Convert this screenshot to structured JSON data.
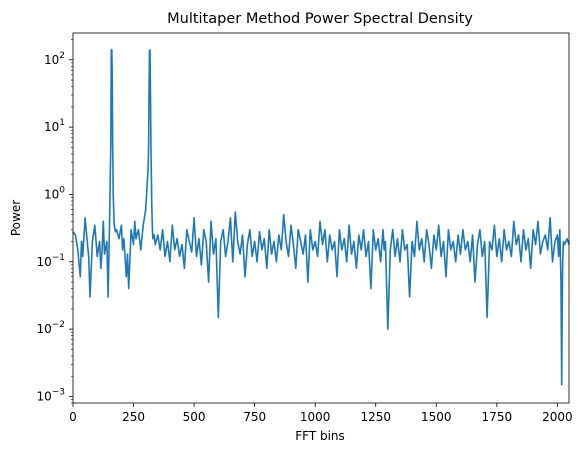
{
  "chart_data": {
    "type": "line",
    "title": "Multitaper Method Power Spectral Density",
    "xlabel": "FFT bins",
    "ylabel": "Power",
    "xlim": [
      0,
      2048
    ],
    "ylim": [
      0.0008,
      250
    ],
    "yscale": "log",
    "grid": false,
    "line_color": "#1f77b4",
    "x_ticks": [
      {
        "value": 0,
        "label": "0"
      },
      {
        "value": 250,
        "label": "250"
      },
      {
        "value": 500,
        "label": "500"
      },
      {
        "value": 750,
        "label": "750"
      },
      {
        "value": 1000,
        "label": "1000"
      },
      {
        "value": 1250,
        "label": "1250"
      },
      {
        "value": 1500,
        "label": "1500"
      },
      {
        "value": 1750,
        "label": "1750"
      },
      {
        "value": 2000,
        "label": "2000"
      }
    ],
    "y_ticks": [
      {
        "value": 0.001,
        "base": "10",
        "exp": "−3"
      },
      {
        "value": 0.01,
        "base": "10",
        "exp": "−2"
      },
      {
        "value": 0.1,
        "base": "10",
        "exp": "−1"
      },
      {
        "value": 1,
        "base": "10",
        "exp": "0"
      },
      {
        "value": 10,
        "base": "10",
        "exp": "1"
      },
      {
        "value": 100,
        "base": "10",
        "exp": "2"
      }
    ],
    "series": [
      {
        "x": [
          0,
          10,
          20,
          30,
          35,
          40,
          50,
          60,
          65,
          70,
          80,
          90,
          100,
          110,
          115,
          120,
          125,
          130,
          140,
          145,
          150,
          152,
          154,
          156,
          157,
          158,
          159,
          160,
          162,
          164,
          165,
          166,
          168,
          170,
          175,
          180,
          190,
          200,
          205,
          210,
          220,
          225,
          230,
          240,
          250,
          255,
          260,
          270,
          280,
          290,
          300,
          305,
          310,
          312,
          314,
          316,
          317,
          318,
          320,
          322,
          324,
          325,
          326,
          328,
          330,
          335,
          340,
          350,
          360,
          370,
          380,
          390,
          400,
          410,
          420,
          430,
          440,
          450,
          460,
          470,
          480,
          490,
          500,
          510,
          520,
          530,
          540,
          550,
          560,
          570,
          580,
          590,
          600,
          610,
          620,
          630,
          640,
          650,
          660,
          670,
          680,
          690,
          700,
          710,
          720,
          730,
          740,
          750,
          760,
          770,
          780,
          790,
          800,
          810,
          820,
          830,
          840,
          850,
          860,
          870,
          880,
          890,
          900,
          910,
          920,
          930,
          940,
          950,
          960,
          970,
          980,
          990,
          1000,
          1010,
          1020,
          1030,
          1040,
          1050,
          1060,
          1070,
          1080,
          1090,
          1100,
          1110,
          1120,
          1130,
          1140,
          1150,
          1160,
          1170,
          1180,
          1190,
          1200,
          1210,
          1220,
          1230,
          1240,
          1250,
          1260,
          1270,
          1280,
          1285,
          1290,
          1300,
          1310,
          1320,
          1330,
          1340,
          1350,
          1360,
          1370,
          1380,
          1390,
          1400,
          1410,
          1420,
          1430,
          1440,
          1450,
          1460,
          1470,
          1480,
          1490,
          1500,
          1510,
          1520,
          1530,
          1540,
          1550,
          1560,
          1570,
          1580,
          1590,
          1600,
          1610,
          1620,
          1630,
          1640,
          1650,
          1660,
          1670,
          1680,
          1690,
          1700,
          1710,
          1720,
          1730,
          1740,
          1750,
          1760,
          1770,
          1780,
          1790,
          1800,
          1810,
          1820,
          1830,
          1840,
          1850,
          1860,
          1870,
          1880,
          1890,
          1900,
          1910,
          1920,
          1930,
          1940,
          1950,
          1960,
          1970,
          1980,
          1990,
          2000,
          2005,
          2010,
          2015,
          2018,
          2020,
          2022,
          2025,
          2030,
          2040,
          2048
        ],
        "values": [
          0.28,
          0.25,
          0.15,
          0.06,
          0.2,
          0.12,
          0.45,
          0.18,
          0.12,
          0.03,
          0.2,
          0.35,
          0.12,
          0.2,
          0.08,
          0.15,
          0.4,
          0.13,
          0.2,
          0.03,
          0.25,
          0.6,
          2.0,
          5.0,
          20,
          140,
          142,
          140,
          60,
          5,
          2.2,
          1.0,
          0.6,
          0.35,
          0.28,
          0.3,
          0.22,
          0.35,
          0.15,
          0.22,
          0.06,
          0.13,
          0.04,
          0.3,
          0.18,
          0.4,
          0.22,
          0.3,
          0.15,
          0.35,
          0.6,
          1.2,
          2.5,
          5,
          30,
          138,
          140,
          138,
          30,
          4,
          1.5,
          0.8,
          0.5,
          0.3,
          0.22,
          0.25,
          0.18,
          0.25,
          0.15,
          0.3,
          0.12,
          0.2,
          0.1,
          0.35,
          0.15,
          0.22,
          0.12,
          0.18,
          0.08,
          0.3,
          0.2,
          0.14,
          0.45,
          0.12,
          0.22,
          0.09,
          0.3,
          0.2,
          0.05,
          0.4,
          0.13,
          0.22,
          0.015,
          0.2,
          0.3,
          0.12,
          0.2,
          0.45,
          0.1,
          0.55,
          0.2,
          0.13,
          0.25,
          0.06,
          0.18,
          0.3,
          0.12,
          0.2,
          0.1,
          0.28,
          0.15,
          0.22,
          0.08,
          0.3,
          0.13,
          0.2,
          0.1,
          0.25,
          0.15,
          0.5,
          0.2,
          0.12,
          0.35,
          0.18,
          0.08,
          0.3,
          0.2,
          0.13,
          0.25,
          0.05,
          0.3,
          0.15,
          0.2,
          0.12,
          0.4,
          0.18,
          0.3,
          0.1,
          0.25,
          0.15,
          0.2,
          0.06,
          0.3,
          0.15,
          0.22,
          0.1,
          0.35,
          0.13,
          0.2,
          0.08,
          0.25,
          0.15,
          0.3,
          0.12,
          0.2,
          0.04,
          0.3,
          0.15,
          0.22,
          0.1,
          0.3,
          0.15,
          0.2,
          0.01,
          0.15,
          0.3,
          0.12,
          0.22,
          0.1,
          0.3,
          0.15,
          0.18,
          0.03,
          0.2,
          0.12,
          0.4,
          0.15,
          0.22,
          0.1,
          0.3,
          0.18,
          0.08,
          0.25,
          0.15,
          0.35,
          0.12,
          0.2,
          0.06,
          0.3,
          0.15,
          0.2,
          0.1,
          0.25,
          0.13,
          0.3,
          0.15,
          0.2,
          0.1,
          0.25,
          0.05,
          0.18,
          0.3,
          0.12,
          0.2,
          0.015,
          0.2,
          0.15,
          0.35,
          0.12,
          0.22,
          0.1,
          0.3,
          0.15,
          0.2,
          0.12,
          0.4,
          0.18,
          0.25,
          0.1,
          0.3,
          0.15,
          0.22,
          0.08,
          0.3,
          0.18,
          0.4,
          0.13,
          0.2,
          0.25,
          0.15,
          0.45,
          0.1,
          0.2,
          0.25,
          0.12,
          0.3,
          0.05,
          0.0015,
          0.02,
          0.1,
          0.2,
          0.18,
          0.22,
          0.18
        ]
      }
    ]
  }
}
